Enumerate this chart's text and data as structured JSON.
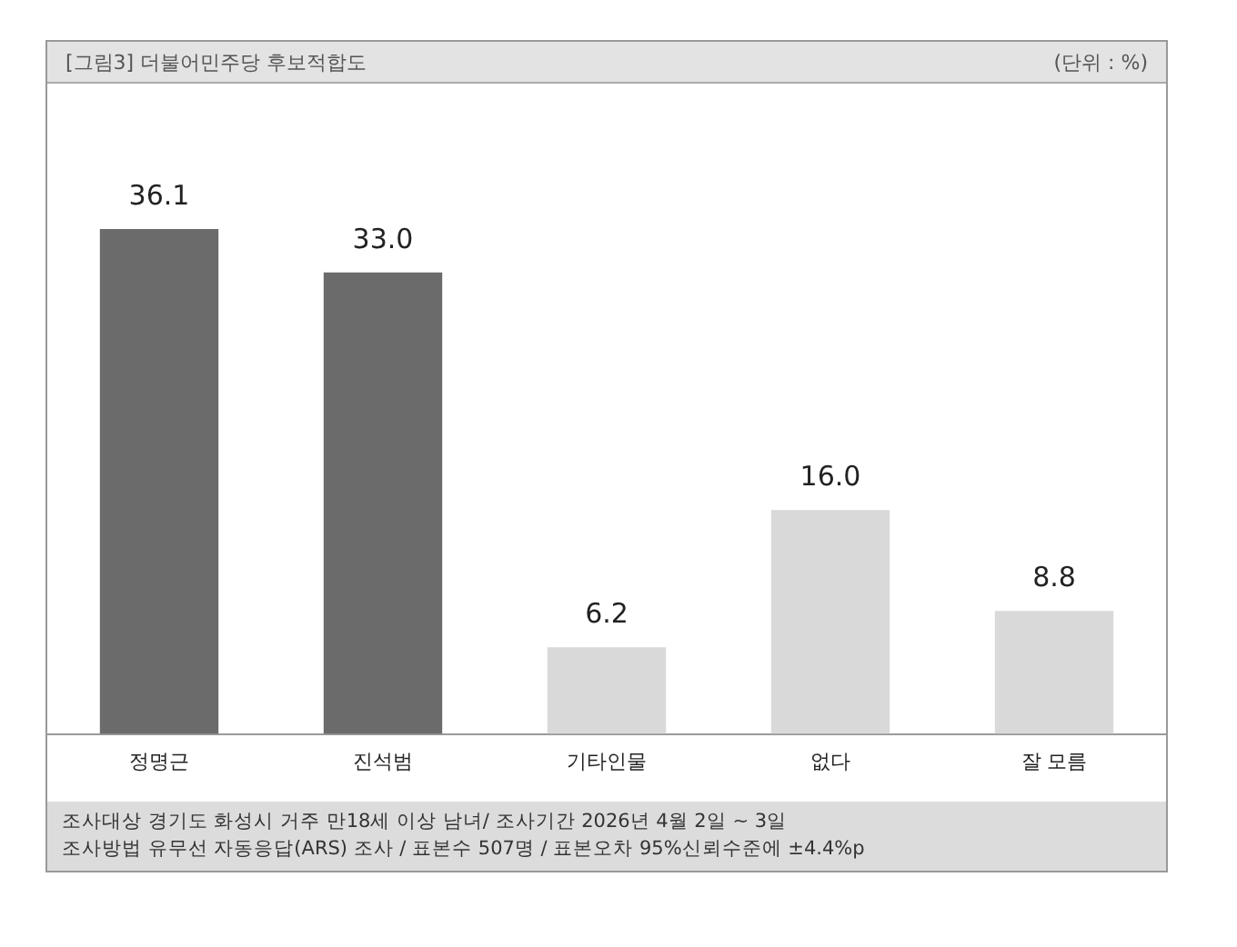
{
  "chart_data": {
    "type": "bar",
    "title": "[그림3] 더불어민주당 후보적합도",
    "subtitle": "(단위 : %)",
    "categories": [
      "정명근",
      "진석범",
      "기타인물",
      "없다",
      "잘 모름"
    ],
    "values": [
      36.1,
      33.0,
      6.2,
      16.0,
      8.8
    ],
    "value_labels": [
      "36.1",
      "33.0",
      "6.2",
      "16.0",
      "8.8"
    ],
    "colors": [
      "#6b6b6b",
      "#6b6b6b",
      "#d9d9d9",
      "#d9d9d9",
      "#d9d9d9"
    ],
    "grid": false,
    "legend": false,
    "annotations": [
      "조사대상 경기도 화성시 거주 만18세 이상 남녀/ 조사기간 2026년 4월 2일 ~ 3일",
      "조사방법 유무선 자동응답(ARS) 조사 / 표본수 507명 / 표본오차 95%신뢰수준에 ±4.4%p"
    ]
  }
}
